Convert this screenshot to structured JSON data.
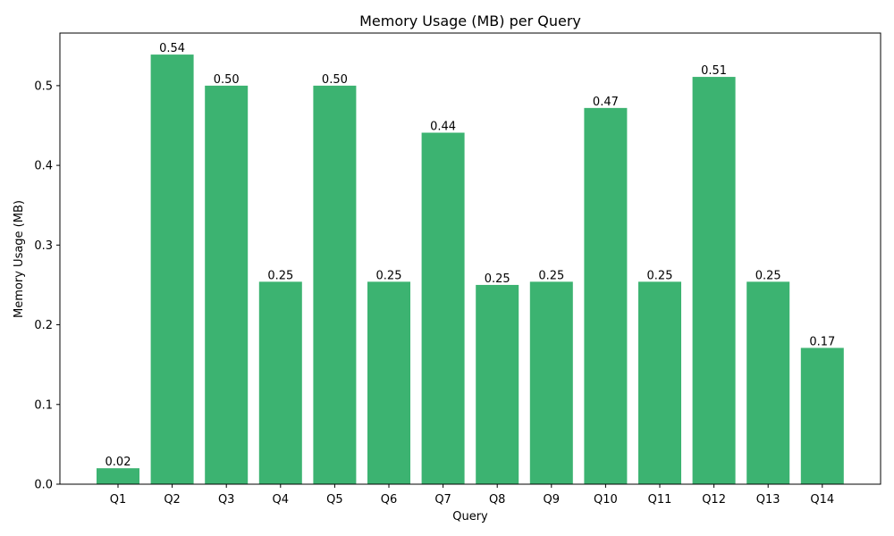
{
  "chart_data": {
    "type": "bar",
    "title": "Memory Usage (MB) per Query",
    "xlabel": "Query",
    "ylabel": "Memory Usage (MB)",
    "categories": [
      "Q1",
      "Q2",
      "Q3",
      "Q4",
      "Q5",
      "Q6",
      "Q7",
      "Q8",
      "Q9",
      "Q10",
      "Q11",
      "Q12",
      "Q13",
      "Q14"
    ],
    "values": [
      0.02,
      0.539,
      0.5,
      0.254,
      0.5,
      0.254,
      0.441,
      0.25,
      0.254,
      0.472,
      0.254,
      0.511,
      0.254,
      0.171
    ],
    "data_labels": [
      "0.02",
      "0.54",
      "0.50",
      "0.25",
      "0.50",
      "0.25",
      "0.44",
      "0.25",
      "0.25",
      "0.47",
      "0.25",
      "0.51",
      "0.25",
      "0.17"
    ],
    "yticks": [
      "0.0",
      "0.1",
      "0.2",
      "0.3",
      "0.4",
      "0.5"
    ],
    "ylim": [
      0,
      0.566
    ],
    "bar_color": "#3cb371",
    "grid": false,
    "legend": "none"
  }
}
